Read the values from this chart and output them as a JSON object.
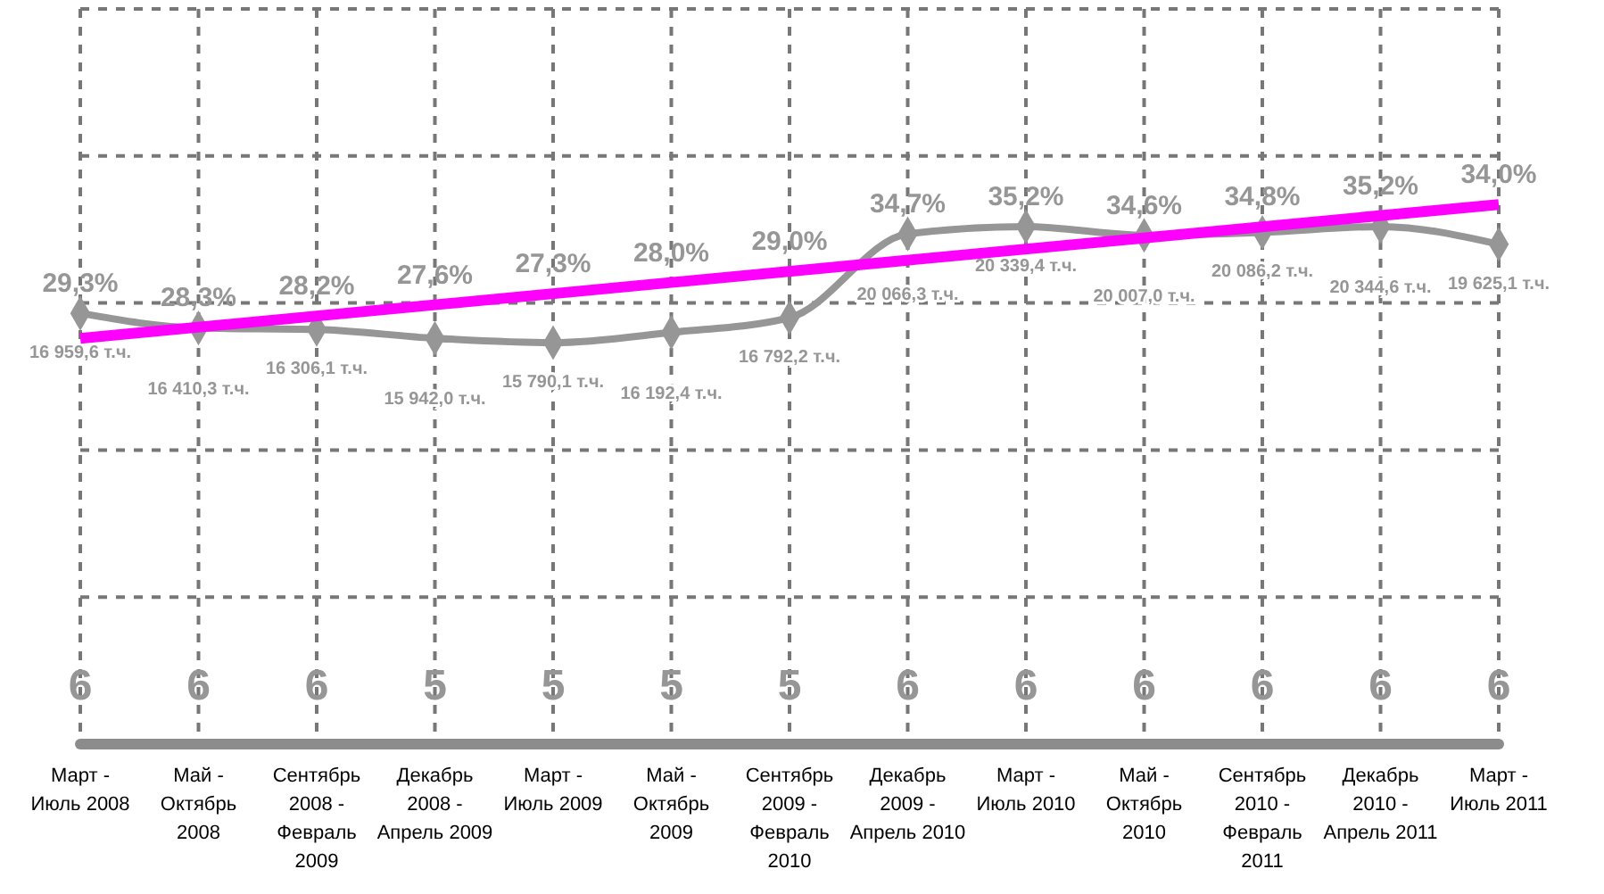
{
  "chart_data": {
    "type": "line",
    "categories": [
      "Март - Июль 2008",
      "Май - Октябрь 2008",
      "Сентябрь 2008 - Февраль 2009",
      "Декабрь 2008 - Апрель 2009",
      "Март - Июль 2009",
      "Май - Октябрь 2009",
      "Сентябрь 2009 - Февраль 2010",
      "Декабрь 2009 - Апрель 2010",
      "Март - Июль 2010",
      "Май - Октябрь 2010",
      "Сентябрь 2010 - Февраль 2011",
      "Декабрь 2010 - Апрель 2011",
      "Март - Июль 2011"
    ],
    "series": [
      {
        "color": "#969696",
        "marker": "diamond",
        "values": [
          29.3,
          28.3,
          28.2,
          27.6,
          27.3,
          28.0,
          29.0,
          34.7,
          35.2,
          34.6,
          34.8,
          35.2,
          34.0
        ],
        "value_labels": [
          "29,3%",
          "28,3%",
          "28,2%",
          "27,6%",
          "27,3%",
          "28,0%",
          "29,0%",
          "34,7%",
          "35,2%",
          "34,6%",
          "34,8%",
          "35,2%",
          "34,0%"
        ]
      },
      {
        "type": "line",
        "color": "#ff00ff",
        "marker": "none",
        "x": [
          "Март - Июль 2008",
          "Март - Июль 2011"
        ],
        "values": [
          27.6,
          36.7
        ]
      }
    ],
    "annotations": [
      {
        "text": "16 959,6 т.ч.",
        "x": "Март - Июль 2008",
        "y": 29.3
      },
      {
        "text": "16 410,3 т.ч.",
        "x": "Май - Октябрь 2008",
        "y": 28.3
      },
      {
        "text": "16 306,1 т.ч.",
        "x": "Сентябрь 2008 - Февраль 2009",
        "y": 28.2
      },
      {
        "text": "15 942,0 т.ч.",
        "x": "Декабрь 2008 - Апрель 2009",
        "y": 27.6
      },
      {
        "text": "15 790,1 т.ч.",
        "x": "Март - Июль 2009",
        "y": 27.3
      },
      {
        "text": "16 192,4 т.ч.",
        "x": "Май - Октябрь 2009",
        "y": 28.0
      },
      {
        "text": "16 792,2 т.ч.",
        "x": "Сентябрь 2009 - Февраль 2010",
        "y": 29.0
      },
      {
        "text": "20 066,3 т.ч.",
        "x": "Декабрь 2009 - Апрель 2010",
        "y": 34.7
      },
      {
        "text": "20 339,4 т.ч.",
        "x": "Март - Июль 2010",
        "y": 35.2
      },
      {
        "text": "20 007,0 т.ч.",
        "x": "Май - Октябрь 2010",
        "y": 34.6
      },
      {
        "text": "20 086,2 т.ч.",
        "x": "Сентябрь 2010 - Февраль 2011",
        "y": 34.8
      },
      {
        "text": "20 344,6 т.ч.",
        "x": "Декабрь 2010 - Апрель 2011",
        "y": 35.2
      },
      {
        "text": "19 625,1 т.ч.",
        "x": "Март - Июль 2011",
        "y": 34.0
      },
      "6",
      "6",
      "6",
      "5",
      "5",
      "5",
      "5",
      "6",
      "6",
      "6",
      "6",
      "6",
      "6"
    ],
    "ylim": [
      0,
      50
    ],
    "yticks": [
      {
        "value": 0,
        "label": null
      },
      {
        "value": 10,
        "label": null
      },
      {
        "value": 20,
        "label": null
      },
      {
        "value": 30,
        "label": null
      },
      {
        "value": 40,
        "label": null
      },
      {
        "value": 50,
        "label": null
      }
    ],
    "grid": true,
    "tick_labels": "x"
  }
}
